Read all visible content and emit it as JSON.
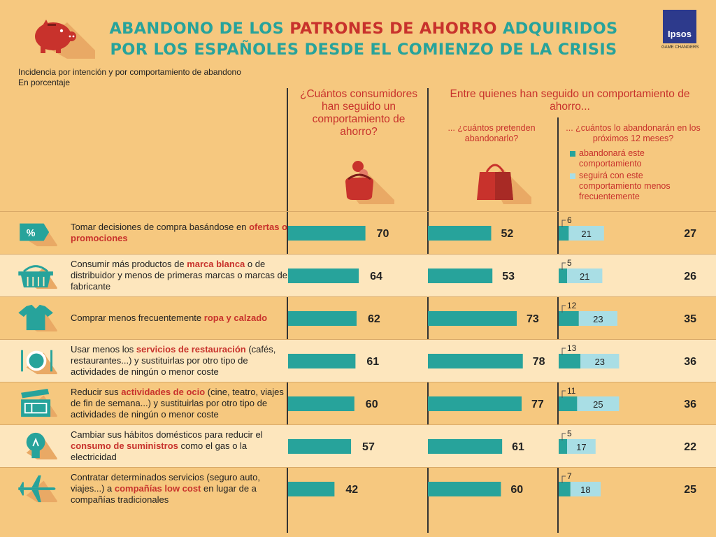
{
  "header": {
    "title_line1_a": "ABANDONO DE LOS ",
    "title_line1_b": "PATRONES DE AHORRO",
    "title_line1_c": " ADQUIRIDOS",
    "title_line2": "POR LOS ESPAÑOLES DESDE EL COMIENZO DE LA CRISIS",
    "logo_text": "Ipsos",
    "logo_tagline": "GAME CHANGERS",
    "subtitle1": "Incidencia por intención y por comportamiento de abandono",
    "subtitle2": "En porcentaje"
  },
  "columns": {
    "c1": "¿Cuántos consumidores han seguido un comportamiento de ahorro?",
    "c2": "Entre quienes han seguido un comportamiento de ahorro...",
    "c2a": "... ¿cuántos pretenden abandonarlo?",
    "c2b": "... ¿cuántos lo abandonarán en los próximos 12 meses?"
  },
  "legend": {
    "abandon": "abandonará este comportamiento",
    "continue": "seguirá con este comportamiento menos frecuentemente"
  },
  "colors": {
    "teal": "#27a39b",
    "light_blue": "#a9dee5",
    "red": "#c8322c"
  },
  "rows": [
    {
      "pre": "Tomar decisiones de compra basándose en ",
      "hl": "ofertas o promociones",
      "post": "",
      "icon": "percent-tag-icon"
    },
    {
      "pre": "Consumir más productos de ",
      "hl": "marca blanca",
      "post": " o de distribuidor y menos de primeras marcas o marcas de fabricante",
      "icon": "basket-icon"
    },
    {
      "pre": "Comprar menos frecuentemente ",
      "hl": "ropa y calzado",
      "post": "",
      "icon": "tshirt-icon"
    },
    {
      "pre": "Usar menos los ",
      "hl": "servicios de restauración",
      "post": " (cafés, restaurantes...) y sustituirlas por otro tipo de actividades de ningún o menor coste",
      "icon": "plate-cutlery-icon"
    },
    {
      "pre": "Reducir sus ",
      "hl": "actividades de ocio",
      "post": " (cine, teatro, viajes de fin de semana...) y sustituirlas por otro tipo de actividades de ningún o menor coste",
      "icon": "clapperboard-icon"
    },
    {
      "pre": "Cambiar sus hábitos domésticos para reducir el ",
      "hl": "consumo de suministros",
      "post": " como el gas o la electricidad",
      "icon": "lightbulb-icon"
    },
    {
      "pre": "Contratar determinados servicios (seguro auto, viajes...) a ",
      "hl": "compañías low cost",
      "post": " en lugar de a compañías tradicionales",
      "icon": "airplane-icon"
    }
  ],
  "chart_data": {
    "type": "bar",
    "categories": [
      "Tomar decisiones de compra basándose en ofertas o promociones",
      "Consumir más productos de marca blanca o de distribuidor y menos de primeras marcas o marcas de fabricante",
      "Comprar menos frecuentemente ropa y calzado",
      "Usar menos los servicios de restauración (cafés, restaurantes...) y sustituirlas por otro tipo de actividades de ningún o menor coste",
      "Reducir sus actividades de ocio (cine, teatro, viajes de fin de semana...) y sustituirlas por otro tipo de actividades de ningún o menor coste",
      "Cambiar sus hábitos domésticos para reducir el consumo de suministros como el gas o la electricidad",
      "Contratar determinados servicios (seguro auto, viajes...) a compañías low cost en lugar de a compañías tradicionales"
    ],
    "series": [
      {
        "name": "¿Cuántos consumidores han seguido un comportamiento de ahorro?",
        "values": [
          70,
          64,
          62,
          61,
          60,
          57,
          42
        ]
      },
      {
        "name": "... ¿cuántos pretenden abandonarlo?",
        "values": [
          52,
          53,
          73,
          78,
          77,
          61,
          60
        ]
      },
      {
        "name": "abandonará este comportamiento",
        "values": [
          6,
          5,
          12,
          13,
          11,
          5,
          7
        ]
      },
      {
        "name": "seguirá con este comportamiento menos frecuentemente",
        "values": [
          21,
          21,
          23,
          23,
          25,
          17,
          18
        ]
      },
      {
        "values": [
          27,
          26,
          35,
          36,
          36,
          22,
          25
        ]
      }
    ],
    "unit": "En porcentaje",
    "xlim": [
      0,
      100
    ]
  }
}
